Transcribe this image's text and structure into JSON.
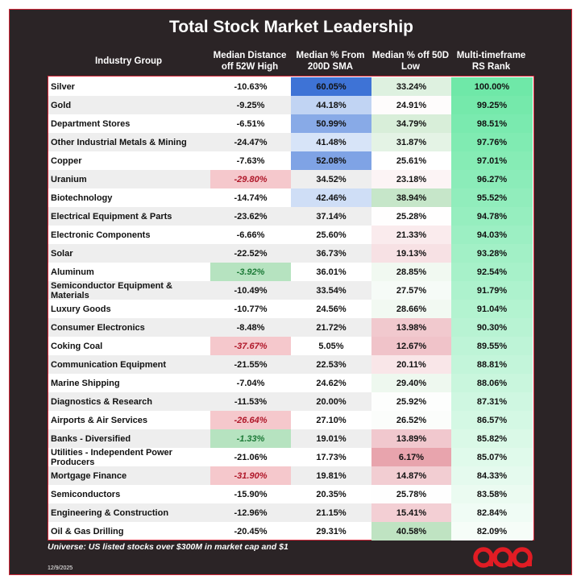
{
  "chart_data": {
    "type": "table",
    "title": "Total Stock Market Leadership",
    "columns": [
      "Industry Group",
      "Median Distance off 52W High",
      "Median % From 200D SMA",
      "Median % off 50D Low",
      "Multi-timeframe RS Rank"
    ],
    "column_headers": [
      [
        "Industry Group"
      ],
      [
        "Median Distance",
        "off 52W High"
      ],
      [
        "Median % From",
        "200D SMA"
      ],
      [
        "Median % off 50D",
        "Low"
      ],
      [
        "Multi-timeframe",
        "RS Rank"
      ]
    ],
    "rows": [
      {
        "group": "Silver",
        "dist_52w_high": "-10.63%",
        "pct_200d_sma": "60.05%",
        "pct_50d_low": "33.24%",
        "rs_rank": "100.00%"
      },
      {
        "group": "Gold",
        "dist_52w_high": "-9.25%",
        "pct_200d_sma": "44.18%",
        "pct_50d_low": "24.91%",
        "rs_rank": "99.25%"
      },
      {
        "group": "Department Stores",
        "dist_52w_high": "-6.51%",
        "pct_200d_sma": "50.99%",
        "pct_50d_low": "34.79%",
        "rs_rank": "98.51%"
      },
      {
        "group": "Other Industrial Metals & Mining",
        "dist_52w_high": "-24.47%",
        "pct_200d_sma": "41.48%",
        "pct_50d_low": "31.87%",
        "rs_rank": "97.76%"
      },
      {
        "group": "Copper",
        "dist_52w_high": "-7.63%",
        "pct_200d_sma": "52.08%",
        "pct_50d_low": "25.61%",
        "rs_rank": "97.01%"
      },
      {
        "group": "Uranium",
        "dist_52w_high": "-29.80%",
        "pct_200d_sma": "34.52%",
        "pct_50d_low": "23.18%",
        "rs_rank": "96.27%"
      },
      {
        "group": "Biotechnology",
        "dist_52w_high": "-14.74%",
        "pct_200d_sma": "42.46%",
        "pct_50d_low": "38.94%",
        "rs_rank": "95.52%"
      },
      {
        "group": "Electrical Equipment & Parts",
        "dist_52w_high": "-23.62%",
        "pct_200d_sma": "37.14%",
        "pct_50d_low": "25.28%",
        "rs_rank": "94.78%"
      },
      {
        "group": "Electronic Components",
        "dist_52w_high": "-6.66%",
        "pct_200d_sma": "25.60%",
        "pct_50d_low": "21.33%",
        "rs_rank": "94.03%"
      },
      {
        "group": "Solar",
        "dist_52w_high": "-22.52%",
        "pct_200d_sma": "36.73%",
        "pct_50d_low": "19.13%",
        "rs_rank": "93.28%"
      },
      {
        "group": "Aluminum",
        "dist_52w_high": "-3.92%",
        "pct_200d_sma": "36.01%",
        "pct_50d_low": "28.85%",
        "rs_rank": "92.54%"
      },
      {
        "group": "Semiconductor Equipment & Materials",
        "dist_52w_high": "-10.49%",
        "pct_200d_sma": "33.54%",
        "pct_50d_low": "27.57%",
        "rs_rank": "91.79%"
      },
      {
        "group": "Luxury Goods",
        "dist_52w_high": "-10.77%",
        "pct_200d_sma": "24.56%",
        "pct_50d_low": "28.66%",
        "rs_rank": "91.04%"
      },
      {
        "group": "Consumer Electronics",
        "dist_52w_high": "-8.48%",
        "pct_200d_sma": "21.72%",
        "pct_50d_low": "13.98%",
        "rs_rank": "90.30%"
      },
      {
        "group": "Coking Coal",
        "dist_52w_high": "-37.67%",
        "pct_200d_sma": "5.05%",
        "pct_50d_low": "12.67%",
        "rs_rank": "89.55%"
      },
      {
        "group": "Communication Equipment",
        "dist_52w_high": "-21.55%",
        "pct_200d_sma": "22.53%",
        "pct_50d_low": "20.11%",
        "rs_rank": "88.81%"
      },
      {
        "group": "Marine Shipping",
        "dist_52w_high": "-7.04%",
        "pct_200d_sma": "24.62%",
        "pct_50d_low": "29.40%",
        "rs_rank": "88.06%"
      },
      {
        "group": "Diagnostics & Research",
        "dist_52w_high": "-11.53%",
        "pct_200d_sma": "20.00%",
        "pct_50d_low": "25.92%",
        "rs_rank": "87.31%"
      },
      {
        "group": "Airports & Air Services",
        "dist_52w_high": "-26.64%",
        "pct_200d_sma": "27.10%",
        "pct_50d_low": "26.52%",
        "rs_rank": "86.57%"
      },
      {
        "group": "Banks - Diversified",
        "dist_52w_high": "-1.33%",
        "pct_200d_sma": "19.01%",
        "pct_50d_low": "13.89%",
        "rs_rank": "85.82%"
      },
      {
        "group": "Utilities - Independent Power Producers",
        "dist_52w_high": "-21.06%",
        "pct_200d_sma": "17.73%",
        "pct_50d_low": "6.17%",
        "rs_rank": "85.07%"
      },
      {
        "group": "Mortgage Finance",
        "dist_52w_high": "-31.90%",
        "pct_200d_sma": "19.81%",
        "pct_50d_low": "14.87%",
        "rs_rank": "84.33%"
      },
      {
        "group": "Semiconductors",
        "dist_52w_high": "-15.90%",
        "pct_200d_sma": "20.35%",
        "pct_50d_low": "25.78%",
        "rs_rank": "83.58%"
      },
      {
        "group": "Engineering & Construction",
        "dist_52w_high": "-12.96%",
        "pct_200d_sma": "21.15%",
        "pct_50d_low": "15.41%",
        "rs_rank": "82.84%"
      },
      {
        "group": "Oil & Gas Drilling",
        "dist_52w_high": "-20.45%",
        "pct_200d_sma": "29.31%",
        "pct_50d_low": "40.58%",
        "rs_rank": "82.09%"
      }
    ],
    "highlights": {
      "dist_52w_high_red": [
        "Uranium",
        "Coking Coal",
        "Airports & Air Services",
        "Mortgage Finance"
      ],
      "dist_52w_high_green": [
        "Aluminum",
        "Banks - Diversified"
      ]
    }
  },
  "footnote": "Universe: US listed stocks over $300M in market cap and $1",
  "date": "12/9/2025",
  "colors": {
    "background": "#2b2426",
    "border": "#d4283a",
    "sma_high": "#3e73d6",
    "low_red": "#e8a4ad",
    "low_green": "#bfe3c2",
    "rs_high": "#6fe8a8",
    "rs_low": "#f6fdf8",
    "highlight_red": "#f5c8cc",
    "highlight_red_text": "#b0182a",
    "highlight_green": "#b6e3c0",
    "highlight_green_text": "#1d7a37"
  }
}
